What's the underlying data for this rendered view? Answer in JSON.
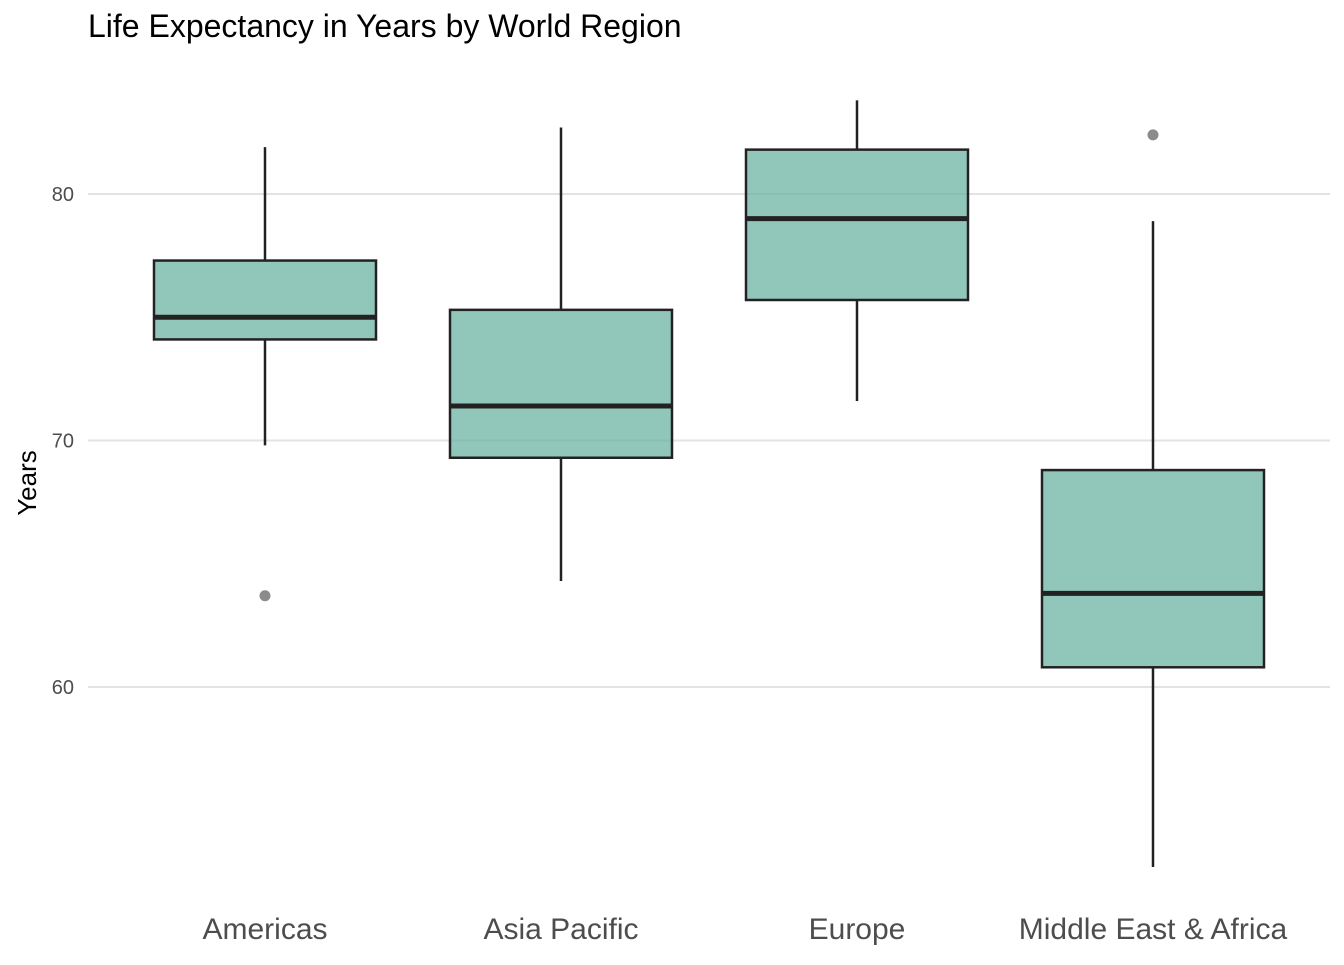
{
  "chart_data": {
    "type": "boxplot",
    "title": "Life Expectancy in Years by World Region",
    "xlabel": "",
    "ylabel": "Years",
    "ylim": [
      52,
      84
    ],
    "yticks": [
      60,
      70,
      80
    ],
    "y_tick_labels": [
      "60",
      "70",
      "80"
    ],
    "grid": true,
    "legend": "none",
    "categories": [
      "Americas",
      "Asia Pacific",
      "Europe",
      "Middle East & Africa"
    ],
    "boxes": [
      {
        "category": "Americas",
        "whisker_low": 69.8,
        "q1": 74.1,
        "median": 75.0,
        "q3": 77.3,
        "whisker_high": 81.9,
        "outliers": [
          63.7
        ]
      },
      {
        "category": "Asia Pacific",
        "whisker_low": 64.3,
        "q1": 69.3,
        "median": 71.4,
        "q3": 75.3,
        "whisker_high": 82.7,
        "outliers": []
      },
      {
        "category": "Europe",
        "whisker_low": 71.6,
        "q1": 75.7,
        "median": 79.0,
        "q3": 81.8,
        "whisker_high": 83.8,
        "outliers": []
      },
      {
        "category": "Middle East & Africa",
        "whisker_low": 52.7,
        "q1": 60.8,
        "median": 63.8,
        "q3": 68.8,
        "whisker_high": 78.9,
        "outliers": [
          82.4
        ]
      }
    ],
    "colors": {
      "box_fill": "#66b2a0",
      "box_outline": "#222222",
      "outlier": "#777777",
      "grid": "#e3e3e3",
      "tick_text": "#4d4d4d",
      "title_text": "#000000"
    }
  }
}
